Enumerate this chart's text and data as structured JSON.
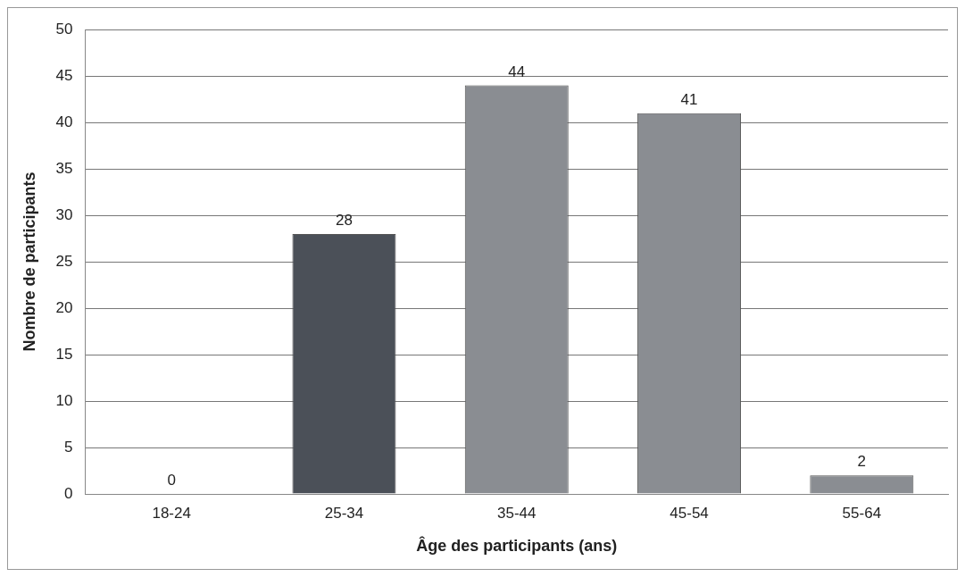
{
  "chart_data": {
    "type": "bar",
    "xlabel": "Âge des participants (ans)",
    "ylabel": "Nombre de participants",
    "categories": [
      "18-24",
      "25-34",
      "35-44",
      "45-54",
      "55-64"
    ],
    "values": [
      0,
      28,
      44,
      41,
      2
    ],
    "colors": [
      "#8a8d92",
      "#4b5058",
      "#8a8d92",
      "#8a8d92",
      "#8a8d92"
    ],
    "ylim": [
      0,
      50
    ],
    "yticks": [
      0,
      5,
      10,
      15,
      20,
      25,
      30,
      35,
      40,
      45,
      50
    ],
    "grid": "y",
    "data_labels": true,
    "legend": false
  }
}
